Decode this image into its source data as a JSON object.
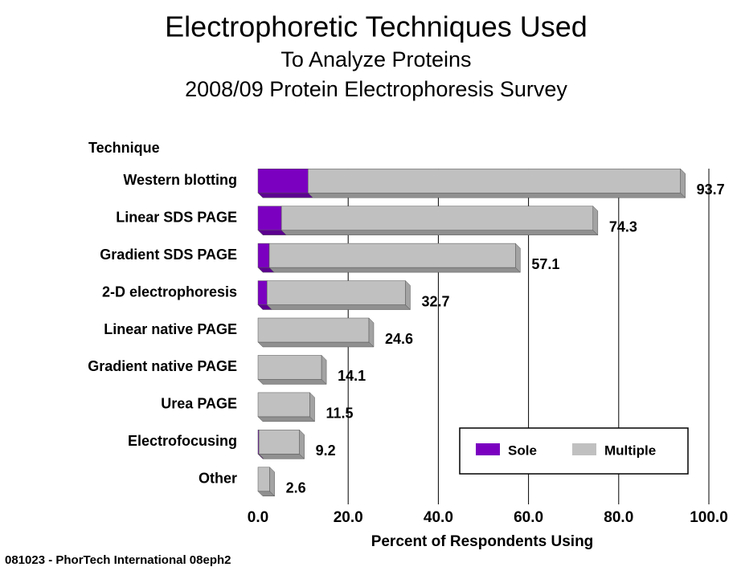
{
  "chart_data": {
    "type": "bar",
    "orientation": "horizontal",
    "stacked": true,
    "title": "Electrophoretic Techniques Used",
    "subtitle": [
      "To Analyze Proteins",
      "2008/09 Protein Electrophoresis Survey"
    ],
    "y_label": "Technique",
    "x_label": "Percent of Respondents Using",
    "footnote": "081023 - PhorTech International 08eph2",
    "categories": [
      "Western blotting",
      "Linear SDS PAGE",
      "Gradient SDS PAGE",
      "2-D electrophoresis",
      "Linear native PAGE",
      "Gradient native PAGE",
      "Urea PAGE",
      "Electrofocusing",
      "Other"
    ],
    "series": [
      {
        "name": "Sole",
        "color": "#7b00c0",
        "values": [
          11.1,
          5.2,
          2.5,
          2.0,
          0,
          0,
          0,
          0.2,
          0
        ]
      },
      {
        "name": "Multiple",
        "color": "#c0c0c0",
        "values": [
          82.6,
          69.1,
          54.6,
          30.7,
          24.6,
          14.1,
          11.5,
          9.0,
          2.6
        ]
      }
    ],
    "totals": [
      93.7,
      74.3,
      57.1,
      32.7,
      24.6,
      14.1,
      11.5,
      9.2,
      2.6
    ],
    "xlim": [
      0,
      100
    ],
    "xticks": [
      {
        "value": 0,
        "label": "0.0"
      },
      {
        "value": 20,
        "label": "20.0"
      },
      {
        "value": 40,
        "label": "40.0"
      },
      {
        "value": 60,
        "label": "60.0"
      },
      {
        "value": 80,
        "label": "80.0"
      },
      {
        "value": 100,
        "label": "100.0"
      }
    ],
    "grid": true,
    "legend": "lower right"
  }
}
